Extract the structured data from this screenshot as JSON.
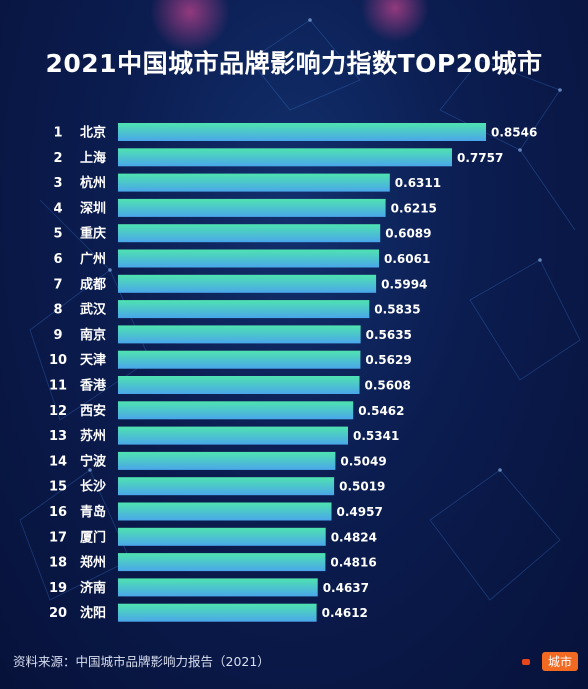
{
  "title": "2021中国城市品牌影响力指数TOP20城市",
  "source": "资料来源：中国城市品牌影响力报告（2021）",
  "watermark": "城市",
  "colors": {
    "bar_top": "#4fe3b0",
    "bar_bottom": "#4aa6ea",
    "background": "#0b1c4f"
  },
  "chart_data": {
    "type": "bar",
    "orientation": "horizontal",
    "ranks": [
      "1",
      "2",
      "3",
      "4",
      "5",
      "6",
      "7",
      "8",
      "9",
      "10",
      "11",
      "12",
      "13",
      "14",
      "15",
      "16",
      "17",
      "18",
      "19",
      "20"
    ],
    "categories": [
      "北京",
      "上海",
      "杭州",
      "深圳",
      "重庆",
      "广州",
      "成都",
      "武汉",
      "南京",
      "天津",
      "香港",
      "西安",
      "苏州",
      "宁波",
      "长沙",
      "青岛",
      "厦门",
      "郑州",
      "济南",
      "沈阳"
    ],
    "values": [
      0.8546,
      0.7757,
      0.6311,
      0.6215,
      0.6089,
      0.6061,
      0.5994,
      0.5835,
      0.5635,
      0.5629,
      0.5608,
      0.5462,
      0.5341,
      0.5049,
      0.5019,
      0.4957,
      0.4824,
      0.4816,
      0.4637,
      0.4612
    ],
    "value_labels": [
      "0.8546",
      "0.7757",
      "0.6311",
      "0.6215",
      "0.6089",
      "0.6061",
      "0.5994",
      "0.5835",
      "0.5635",
      "0.5629",
      "0.5608",
      "0.5462",
      "0.5341",
      "0.5049",
      "0.5019",
      "0.4957",
      "0.4824",
      "0.4816",
      "0.4637",
      "0.4612"
    ],
    "xlim": [
      0,
      0.8546
    ],
    "grid": false,
    "legend": "none"
  }
}
